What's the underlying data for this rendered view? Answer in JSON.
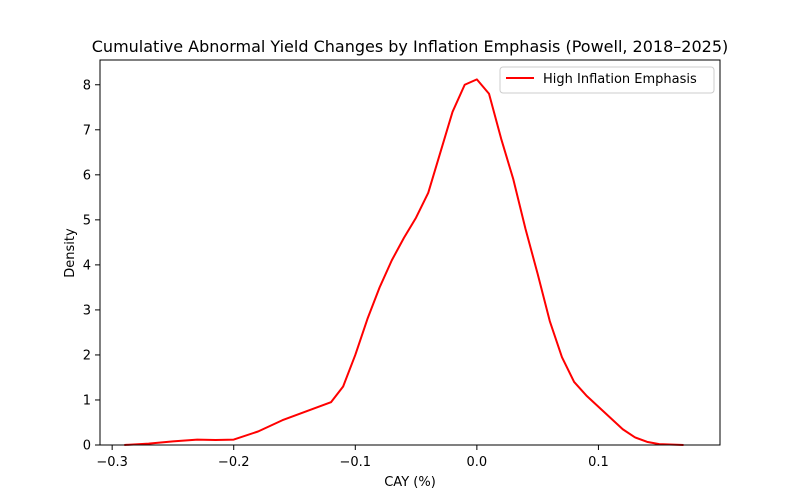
{
  "chart_data": {
    "type": "line",
    "title": "Cumulative Abnormal Yield Changes by Inflation Emphasis (Powell, 2018–2025)",
    "xlabel": "CAY (%)",
    "ylabel": "Density",
    "xlim": [
      -0.31,
      0.2
    ],
    "ylim": [
      0,
      8.55
    ],
    "x_ticks": [
      -0.3,
      -0.2,
      -0.1,
      0.0,
      0.1
    ],
    "x_tick_labels": [
      "−0.3",
      "−0.2",
      "−0.1",
      "0.0",
      "0.1"
    ],
    "y_ticks": [
      0,
      1,
      2,
      3,
      4,
      5,
      6,
      7,
      8
    ],
    "y_tick_labels": [
      "0",
      "1",
      "2",
      "3",
      "4",
      "5",
      "6",
      "7",
      "8"
    ],
    "grid": false,
    "legend_position": "top-right",
    "series": [
      {
        "name": "High Inflation Emphasis",
        "color": "#ff0000",
        "x": [
          -0.29,
          -0.27,
          -0.25,
          -0.23,
          -0.215,
          -0.2,
          -0.18,
          -0.16,
          -0.14,
          -0.12,
          -0.11,
          -0.1,
          -0.09,
          -0.08,
          -0.07,
          -0.06,
          -0.05,
          -0.04,
          -0.03,
          -0.02,
          -0.01,
          0.0,
          0.01,
          0.02,
          0.03,
          0.04,
          0.05,
          0.06,
          0.07,
          0.08,
          0.09,
          0.1,
          0.11,
          0.12,
          0.13,
          0.14,
          0.15,
          0.17
        ],
        "y": [
          0.0,
          0.03,
          0.08,
          0.12,
          0.11,
          0.12,
          0.3,
          0.55,
          0.75,
          0.95,
          1.3,
          2.0,
          2.8,
          3.5,
          4.1,
          4.6,
          5.05,
          5.6,
          6.5,
          7.4,
          8.0,
          8.12,
          7.8,
          6.8,
          5.9,
          4.8,
          3.8,
          2.75,
          1.95,
          1.4,
          1.1,
          0.85,
          0.6,
          0.35,
          0.17,
          0.07,
          0.02,
          0.0
        ]
      }
    ]
  }
}
